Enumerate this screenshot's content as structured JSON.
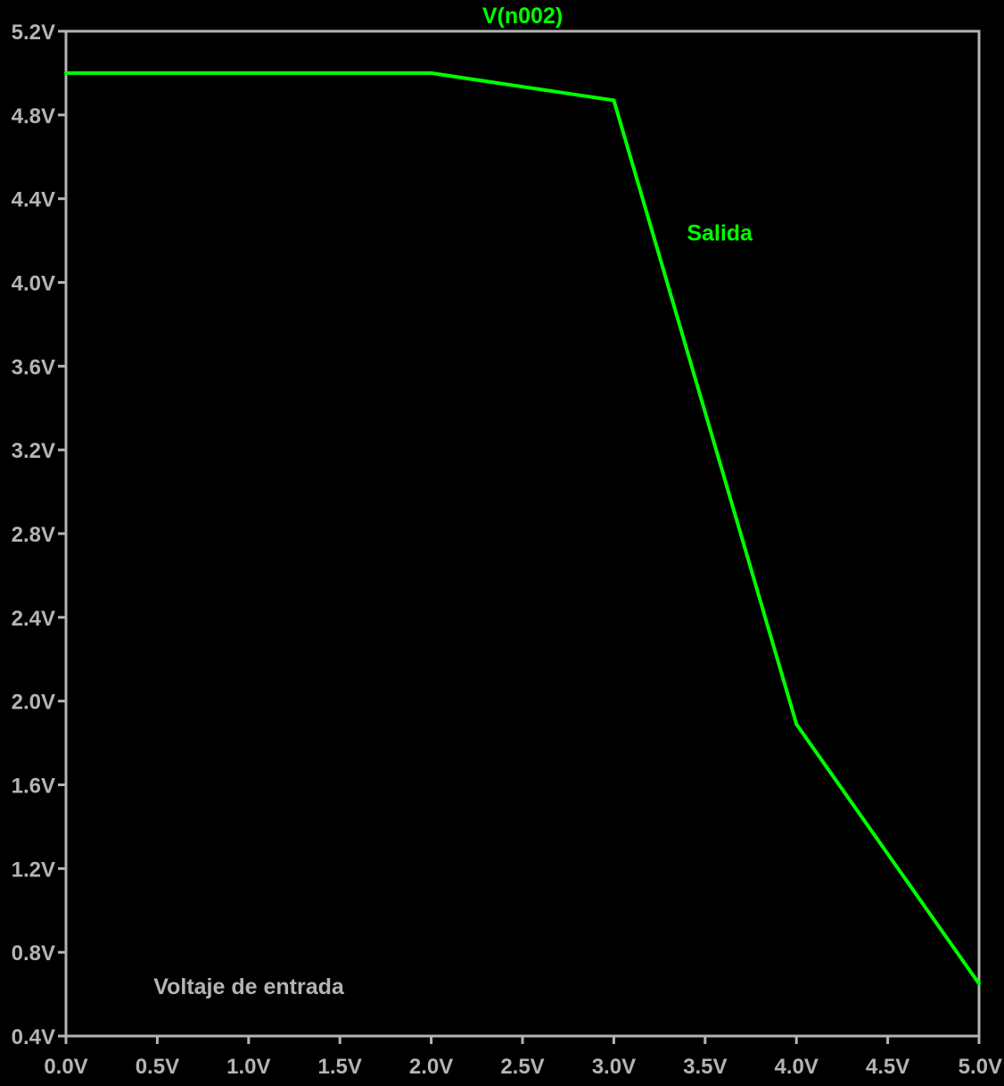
{
  "colors": {
    "background": "#000000",
    "axis": "#b4b4b4",
    "trace": "#00ff00"
  },
  "chart_data": {
    "type": "line",
    "title": "V(n002)",
    "xlabel": "",
    "ylabel": "",
    "xlim": [
      0,
      5
    ],
    "ylim": [
      0.4,
      5.2
    ],
    "grid": false,
    "x_ticks": [
      0,
      0.5,
      1,
      1.5,
      2,
      2.5,
      3,
      3.5,
      4,
      4.5,
      5
    ],
    "x_tick_labels": [
      "0.0V",
      "0.5V",
      "1.0V",
      "1.5V",
      "2.0V",
      "2.5V",
      "3.0V",
      "3.5V",
      "4.0V",
      "4.5V",
      "5.0V"
    ],
    "y_ticks": [
      0.4,
      0.8,
      1.2,
      1.6,
      2.0,
      2.4,
      2.8,
      3.2,
      3.6,
      4.0,
      4.4,
      4.8,
      5.2
    ],
    "y_tick_labels": [
      "0.4V",
      "0.8V",
      "1.2V",
      "1.6V",
      "2.0V",
      "2.4V",
      "2.8V",
      "3.2V",
      "3.6V",
      "4.0V",
      "4.4V",
      "4.8V",
      "5.2V"
    ],
    "series": [
      {
        "name": "V(n002)",
        "color": "#00ff00",
        "x": [
          0,
          2.0,
          3.0,
          4.0,
          5.0
        ],
        "y": [
          5.0,
          5.0,
          4.87,
          1.89,
          0.65
        ]
      }
    ],
    "annotations": [
      {
        "text": "Salida",
        "x": 3.4,
        "y": 4.2,
        "color": "#00ff00"
      },
      {
        "text": "Voltaje de entrada",
        "x": 0.48,
        "y": 0.6,
        "color": "#b4b4b4"
      }
    ]
  }
}
